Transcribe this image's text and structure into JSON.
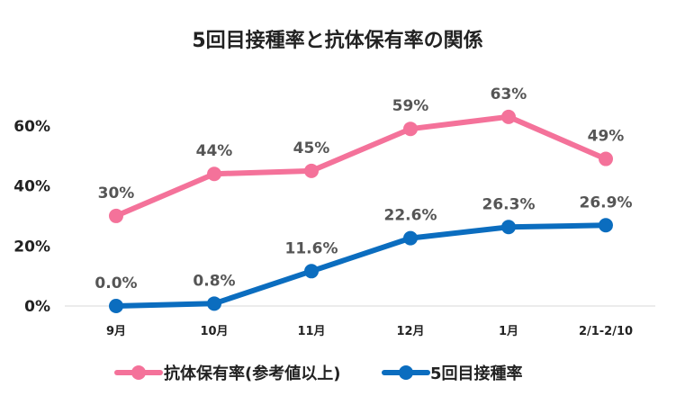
{
  "chart_data": {
    "type": "line",
    "title": "5回目接種率と抗体保有率の関係",
    "categories": [
      "9月",
      "10月",
      "11月",
      "12月",
      "1月",
      "2/1-2/10"
    ],
    "ylim": [
      0,
      70
    ],
    "yticks": [
      0,
      20,
      40,
      60
    ],
    "ytick_labels": [
      "0%",
      "20%",
      "40%",
      "60%"
    ],
    "grid": false,
    "legend_position": "bottom",
    "series": [
      {
        "name": "抗体保有率(参考値以上)",
        "color": "#F4729A",
        "values": [
          30,
          44,
          45,
          59,
          63,
          49
        ],
        "labels": [
          "30%",
          "44%",
          "45%",
          "59%",
          "63%",
          "49%"
        ]
      },
      {
        "name": "5回目接種率",
        "color": "#0B6DBF",
        "values": [
          0.0,
          0.8,
          11.6,
          22.6,
          26.3,
          26.9
        ],
        "labels": [
          "0.0%",
          "0.8%",
          "11.6%",
          "22.6%",
          "26.3%",
          "26.9%"
        ]
      }
    ]
  }
}
